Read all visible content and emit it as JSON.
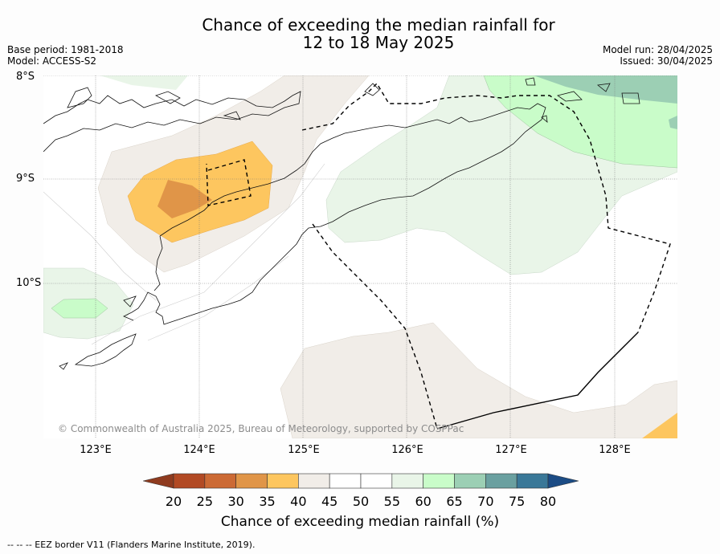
{
  "header": {
    "title_line1": "Chance of exceeding the median rainfall for",
    "title_line2": "12 to 18 May 2025",
    "base_period": "Base period: 1981-2018",
    "model": "Model: ACCESS-S2",
    "model_run": "Model run: 28/04/2025",
    "issued": "Issued: 30/04/2025"
  },
  "map": {
    "lat_labels": [
      "8°S",
      "9°S",
      "10°S"
    ],
    "lon_labels": [
      "123°E",
      "124°E",
      "125°E",
      "126°E",
      "127°E",
      "128°E"
    ],
    "copyright": "© Commonwealth of Australia 2025, Bureau of Meteorology, supported by COSPPac"
  },
  "colorbar": {
    "tick_labels": [
      "20",
      "25",
      "30",
      "35",
      "40",
      "45",
      "50",
      "55",
      "60",
      "65",
      "70",
      "75",
      "80"
    ],
    "colors": [
      "#8f3b1f",
      "#b24a24",
      "#cc6a35",
      "#e09548",
      "#fdc65f",
      "#f1ede8",
      "#ffffff",
      "#ffffff",
      "#e9f5e8",
      "#c9fcc9",
      "#9ccfb4",
      "#6aa0a0",
      "#3a7898",
      "#1c4c85"
    ],
    "title": "Chance of exceeding median rainfall (%)"
  },
  "footer": {
    "legend_note": "--  --  -- EEZ border V11 (Flanders Marine Institute, 2019)."
  }
}
